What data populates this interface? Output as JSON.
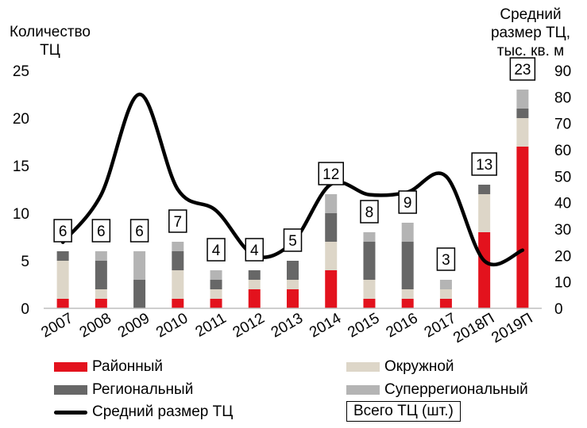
{
  "chart_data": {
    "type": "bar",
    "stacked": true,
    "ylabel": "Количество ТЦ",
    "ylabel_right": "Средний размер ТЦ, тыс. кв. м",
    "ylim": [
      0,
      25
    ],
    "yticks": [
      0,
      5,
      10,
      15,
      20,
      25
    ],
    "y2lim": [
      0,
      90
    ],
    "y2ticks": [
      0,
      10,
      20,
      30,
      40,
      50,
      60,
      70,
      80,
      90
    ],
    "categories": [
      "2007",
      "2008",
      "2009",
      "2010",
      "2011",
      "2012",
      "2013",
      "2014",
      "2015",
      "2016",
      "2017",
      "2018П",
      "2019П"
    ],
    "series": [
      {
        "name": "Районный",
        "color": "#e3121d",
        "values": [
          1,
          1,
          0,
          1,
          1,
          2,
          2,
          4,
          1,
          1,
          1,
          8,
          17
        ]
      },
      {
        "name": "Окружной",
        "color": "#ddd6c8",
        "values": [
          4,
          1,
          0,
          3,
          1,
          1,
          1,
          3,
          2,
          1,
          1,
          4,
          3
        ]
      },
      {
        "name": "Региональный",
        "color": "#676767",
        "values": [
          1,
          3,
          3,
          2,
          1,
          1,
          2,
          3,
          4,
          5,
          0,
          1,
          1
        ]
      },
      {
        "name": "Суперрегиональный",
        "color": "#b4b4b4",
        "values": [
          0,
          1,
          3,
          1,
          1,
          0,
          0,
          2,
          1,
          2,
          1,
          0,
          2
        ]
      }
    ],
    "totals": [
      6,
      6,
      6,
      7,
      4,
      4,
      5,
      12,
      8,
      9,
      3,
      13,
      23
    ],
    "line": {
      "name": "Средний размер ТЦ",
      "color": "#000000",
      "axis": "right",
      "values": [
        25,
        43,
        81,
        45,
        37,
        20,
        25,
        47,
        43,
        44,
        50,
        18,
        22
      ]
    },
    "totals_legend": "Всего ТЦ (шт.)",
    "legend_position": "bottom",
    "grid": false
  }
}
